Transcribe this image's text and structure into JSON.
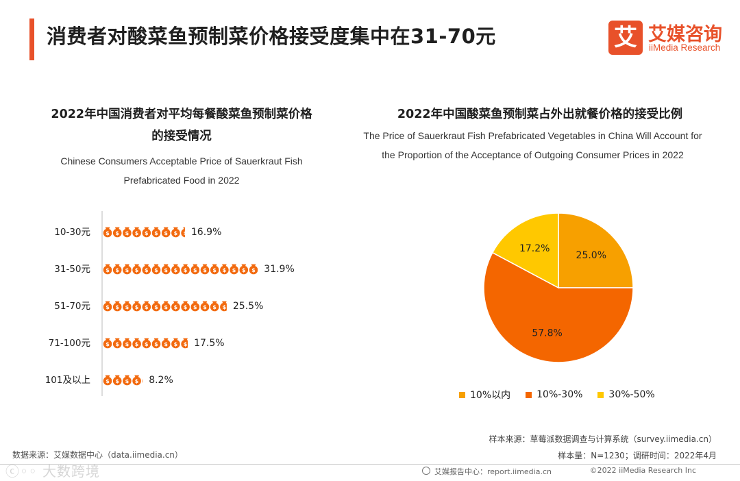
{
  "header": {
    "title": "消费者对酸菜鱼预制菜价格接受度集中在31-70元",
    "logo_mark": "艾",
    "logo_name": "艾媒咨询",
    "logo_sub": "iiMedia Research"
  },
  "left_chart": {
    "title_line1": "2022年中国消费者对平均每餐酸菜鱼预制菜价格",
    "title_line2": "的接受情况",
    "subtitle_line1": "Chinese Consumers Acceptable Price of Sauerkraut Fish",
    "subtitle_line2": "Prefabricated Food in 2022"
  },
  "right_chart": {
    "title": "2022年中国酸菜鱼预制菜占外出就餐价格的接受比例",
    "subtitle_line1": "The Price of Sauerkraut Fish Prefabricated Vegetables in China Will Account for",
    "subtitle_line2": "the Proportion of the Acceptance of Outgoing Consumer  Prices in 2022"
  },
  "chart_data": [
    {
      "type": "bar",
      "orientation": "horizontal",
      "mark": "pictograph-money-bag",
      "title": "2022年中国消费者对平均每餐酸菜鱼预制菜价格的接受情况",
      "subtitle": "Chinese Consumers Acceptable Price of Sauerkraut Fish Prefabricated Food in 2022",
      "categories": [
        "10-30元",
        "31-50元",
        "51-70元",
        "71-100元",
        "101及以上"
      ],
      "values": [
        16.9,
        31.9,
        25.5,
        17.5,
        8.2
      ],
      "labels": [
        "16.9%",
        "31.9%",
        "25.5%",
        "17.5%",
        "8.2%"
      ],
      "unit": "%",
      "color": "#f26a0f"
    },
    {
      "type": "pie",
      "title": "2022年中国酸菜鱼预制菜占外出就餐价格的接受比例",
      "subtitle": "The Price of Sauerkraut Fish Prefabricated Vegetables in China Will Account for the Proportion of the Acceptance of Outgoing Consumer  Prices in 2022",
      "categories": [
        "10%以内",
        "10%-30%",
        "30%-50%"
      ],
      "values": [
        25.0,
        57.8,
        17.2
      ],
      "labels": [
        "25.0%",
        "57.8%",
        "17.2%"
      ],
      "colors": [
        "#f7a000",
        "#f46600",
        "#ffc800"
      ],
      "legend_position": "bottom"
    }
  ],
  "footer": {
    "data_source": "数据来源：艾媒数据中心（data.iimedia.cn）",
    "sample_source": "样本来源：草莓派数据调查与计算系统（survey.iimedia.cn）",
    "sample_size": "样本量：N=1230；调研时间：2022年4月",
    "report_center": "艾媒报告中心：report.iimedia.cn",
    "copyright": "©2022  iiMedia Research  Inc",
    "watermark": "ⓒ◦◦ 大数跨境"
  }
}
